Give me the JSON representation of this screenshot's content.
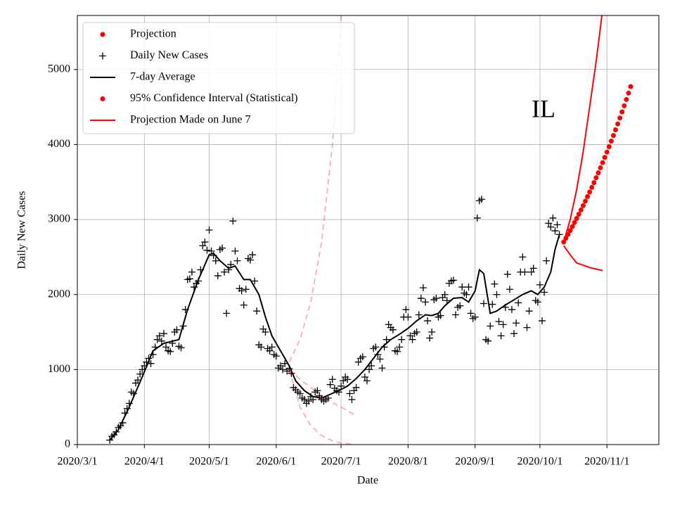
{
  "chart_data": {
    "type": "scatter",
    "annotation": "IL",
    "xlabel": "Date",
    "ylabel": "Daily New Cases",
    "xlim": [
      "2020/3/1",
      "2020/11/25"
    ],
    "ylim": [
      0,
      5720
    ],
    "xticks": [
      "2020/3/1",
      "2020/4/1",
      "2020/5/1",
      "2020/6/1",
      "2020/7/1",
      "2020/8/1",
      "2020/9/1",
      "2020/10/1",
      "2020/11/1"
    ],
    "yticks": [
      0,
      1000,
      2000,
      3000,
      4000,
      5000
    ],
    "grid": true,
    "legend": "upper left",
    "series": [
      {
        "name": "Projection",
        "color": "#ff0000",
        "style": "dot",
        "x": [
          "2020/10/12",
          "2020/10/13",
          "2020/10/14",
          "2020/10/15",
          "2020/10/16",
          "2020/10/17",
          "2020/10/18",
          "2020/10/19",
          "2020/10/20",
          "2020/10/21",
          "2020/10/22",
          "2020/10/23",
          "2020/10/24",
          "2020/10/25",
          "2020/10/26",
          "2020/10/27",
          "2020/10/28",
          "2020/10/29",
          "2020/10/30",
          "2020/10/31",
          "2020/11/1",
          "2020/11/2",
          "2020/11/3",
          "2020/11/4",
          "2020/11/5",
          "2020/11/6",
          "2020/11/7",
          "2020/11/8",
          "2020/11/9",
          "2020/11/10",
          "2020/11/11",
          "2020/11/12"
        ],
        "values": [
          2700,
          2750,
          2801,
          2853,
          2906,
          2960,
          3015,
          3071,
          3128,
          3186,
          3245,
          3305,
          3366,
          3428,
          3492,
          3557,
          3623,
          3690,
          3758,
          3828,
          3899,
          3971,
          4045,
          4120,
          4196,
          4274,
          4353,
          4434,
          4516,
          4600,
          4685,
          4772
        ]
      },
      {
        "name": "Daily New Cases",
        "color": "#000000",
        "style": "plus",
        "x": [
          "2020/3/16",
          "2020/3/17",
          "2020/3/18",
          "2020/3/19",
          "2020/3/20",
          "2020/3/21",
          "2020/3/22",
          "2020/3/23",
          "2020/3/24",
          "2020/3/25",
          "2020/3/26",
          "2020/3/27",
          "2020/3/28",
          "2020/3/29",
          "2020/3/30",
          "2020/3/31",
          "2020/4/1",
          "2020/4/2",
          "2020/4/3",
          "2020/4/4",
          "2020/4/5",
          "2020/4/6",
          "2020/4/7",
          "2020/4/8",
          "2020/4/9",
          "2020/4/10",
          "2020/4/11",
          "2020/4/12",
          "2020/4/13",
          "2020/4/14",
          "2020/4/15",
          "2020/4/16",
          "2020/4/17",
          "2020/4/18",
          "2020/4/19",
          "2020/4/20",
          "2020/4/21",
          "2020/4/22",
          "2020/4/23",
          "2020/4/24",
          "2020/4/25",
          "2020/4/26",
          "2020/4/27",
          "2020/4/28",
          "2020/4/29",
          "2020/4/30",
          "2020/5/1",
          "2020/5/2",
          "2020/5/3",
          "2020/5/4",
          "2020/5/5",
          "2020/5/6",
          "2020/5/7",
          "2020/5/8",
          "2020/5/9",
          "2020/5/10",
          "2020/5/11",
          "2020/5/12",
          "2020/5/13",
          "2020/5/14",
          "2020/5/15",
          "2020/5/16",
          "2020/5/17",
          "2020/5/18",
          "2020/5/19",
          "2020/5/20",
          "2020/5/21",
          "2020/5/22",
          "2020/5/23",
          "2020/5/24",
          "2020/5/25",
          "2020/5/26",
          "2020/5/27",
          "2020/5/28",
          "2020/5/29",
          "2020/5/30",
          "2020/5/31",
          "2020/6/1",
          "2020/6/2",
          "2020/6/3",
          "2020/6/4",
          "2020/6/5",
          "2020/6/6",
          "2020/6/7",
          "2020/6/8",
          "2020/6/9",
          "2020/6/10",
          "2020/6/11",
          "2020/6/12",
          "2020/6/13",
          "2020/6/14",
          "2020/6/15",
          "2020/6/16",
          "2020/6/17",
          "2020/6/18",
          "2020/6/19",
          "2020/6/20",
          "2020/6/21",
          "2020/6/22",
          "2020/6/23",
          "2020/6/24",
          "2020/6/25",
          "2020/6/26",
          "2020/6/27",
          "2020/6/28",
          "2020/6/29",
          "2020/6/30",
          "2020/7/1",
          "2020/7/2",
          "2020/7/3",
          "2020/7/4",
          "2020/7/5",
          "2020/7/6",
          "2020/7/7",
          "2020/7/8",
          "2020/7/9",
          "2020/7/10",
          "2020/7/11",
          "2020/7/12",
          "2020/7/13",
          "2020/7/14",
          "2020/7/15",
          "2020/7/16",
          "2020/7/17",
          "2020/7/18",
          "2020/7/19",
          "2020/7/20",
          "2020/7/21",
          "2020/7/22",
          "2020/7/23",
          "2020/7/24",
          "2020/7/25",
          "2020/7/26",
          "2020/7/27",
          "2020/7/28",
          "2020/7/29",
          "2020/7/30",
          "2020/7/31",
          "2020/8/1",
          "2020/8/2",
          "2020/8/3",
          "2020/8/4",
          "2020/8/5",
          "2020/8/6",
          "2020/8/7",
          "2020/8/8",
          "2020/8/9",
          "2020/8/10",
          "2020/8/11",
          "2020/8/12",
          "2020/8/13",
          "2020/8/14",
          "2020/8/15",
          "2020/8/16",
          "2020/8/17",
          "2020/8/18",
          "2020/8/19",
          "2020/8/20",
          "2020/8/21",
          "2020/8/22",
          "2020/8/23",
          "2020/8/24",
          "2020/8/25",
          "2020/8/26",
          "2020/8/27",
          "2020/8/28",
          "2020/8/29",
          "2020/8/30",
          "2020/8/31",
          "2020/9/1",
          "2020/9/2",
          "2020/9/3",
          "2020/9/4",
          "2020/9/5",
          "2020/9/6",
          "2020/9/7",
          "2020/9/8",
          "2020/9/9",
          "2020/9/10",
          "2020/9/11",
          "2020/9/12",
          "2020/9/13",
          "2020/9/14",
          "2020/9/15",
          "2020/9/16",
          "2020/9/17",
          "2020/9/18",
          "2020/9/19",
          "2020/9/20",
          "2020/9/21",
          "2020/9/22",
          "2020/9/23",
          "2020/9/24",
          "2020/9/25",
          "2020/9/26",
          "2020/9/27",
          "2020/9/28",
          "2020/9/29",
          "2020/9/30",
          "2020/10/1",
          "2020/10/2",
          "2020/10/3",
          "2020/10/4",
          "2020/10/5",
          "2020/10/6",
          "2020/10/7",
          "2020/10/8",
          "2020/10/9",
          "2020/10/10"
        ],
        "values": [
          60,
          110,
          130,
          170,
          230,
          250,
          290,
          420,
          480,
          550,
          700,
          680,
          820,
          860,
          940,
          1000,
          1050,
          1100,
          1150,
          1080,
          1200,
          1300,
          1400,
          1450,
          1380,
          1480,
          1300,
          1250,
          1240,
          1350,
          1500,
          1530,
          1310,
          1290,
          1580,
          1800,
          2200,
          2210,
          2300,
          2100,
          2150,
          2180,
          2330,
          2650,
          2700,
          2590,
          2860,
          2580,
          2520,
          2450,
          2250,
          2600,
          2620,
          2300,
          1750,
          2330,
          2400,
          2980,
          2580,
          2450,
          2080,
          2050,
          1860,
          2070,
          2480,
          2460,
          2530,
          2180,
          1780,
          1330,
          1300,
          1540,
          1500,
          1280,
          1250,
          1300,
          1200,
          1180,
          1020,
          1050,
          1000,
          1080,
          980,
          1010,
          950,
          760,
          730,
          700,
          680,
          620,
          600,
          550,
          580,
          640,
          600,
          700,
          720,
          650,
          600,
          580,
          600,
          620,
          800,
          870,
          750,
          720,
          700,
          780,
          850,
          900,
          870,
          680,
          600,
          720,
          760,
          1100,
          1150,
          1170,
          900,
          850,
          1000,
          1050,
          1280,
          1300,
          1200,
          1140,
          1020,
          1300,
          1400,
          1600,
          1560,
          1530,
          1250,
          1240,
          1300,
          1400,
          1700,
          1800,
          1700,
          1450,
          1400,
          1480,
          1500,
          1730,
          1950,
          2090,
          1900,
          1650,
          1420,
          1500,
          1930,
          1950,
          1700,
          1720,
          1960,
          2000,
          1920,
          2150,
          2180,
          2190,
          1730,
          1830,
          1850,
          2100,
          2020,
          2000,
          2100,
          1750,
          1680,
          1700,
          3020,
          3250,
          3270,
          1880,
          1400,
          1380,
          1580,
          1870,
          2140,
          2000,
          1640,
          1450,
          1600,
          1830,
          2270,
          2070,
          1800,
          1480,
          1620,
          1890,
          2300,
          2500,
          2300,
          1560,
          1780,
          2300,
          2350,
          1920,
          1900,
          2130,
          1650,
          2030,
          2450,
          2950,
          2900,
          3020,
          2850,
          2930,
          2800
        ]
      },
      {
        "name": "7-day Average",
        "color": "#000000",
        "style": "line",
        "x": [
          "2020/3/16",
          "2020/3/20",
          "2020/3/25",
          "2020/3/31",
          "2020/4/5",
          "2020/4/10",
          "2020/4/17",
          "2020/4/21",
          "2020/4/26",
          "2020/5/1",
          "2020/5/3",
          "2020/5/6",
          "2020/5/10",
          "2020/5/13",
          "2020/5/17",
          "2020/5/20",
          "2020/5/24",
          "2020/5/27",
          "2020/5/30",
          "2020/6/3",
          "2020/6/7",
          "2020/6/10",
          "2020/6/14",
          "2020/6/18",
          "2020/6/22",
          "2020/6/26",
          "2020/6/30",
          "2020/7/4",
          "2020/7/8",
          "2020/7/12",
          "2020/7/16",
          "2020/7/20",
          "2020/7/24",
          "2020/7/28",
          "2020/8/1",
          "2020/8/5",
          "2020/8/9",
          "2020/8/12",
          "2020/8/15",
          "2020/8/18",
          "2020/8/22",
          "2020/8/26",
          "2020/8/29",
          "2020/9/1",
          "2020/9/3",
          "2020/9/5",
          "2020/9/8",
          "2020/9/11",
          "2020/9/15",
          "2020/9/19",
          "2020/9/23",
          "2020/9/27",
          "2020/9/30",
          "2020/10/3",
          "2020/10/6",
          "2020/10/8",
          "2020/10/10"
        ],
        "values": [
          60,
          200,
          500,
          900,
          1250,
          1350,
          1400,
          1800,
          2200,
          2530,
          2550,
          2450,
          2350,
          2380,
          2200,
          2200,
          2000,
          1700,
          1450,
          1250,
          1050,
          850,
          720,
          640,
          620,
          670,
          720,
          780,
          880,
          1000,
          1150,
          1300,
          1400,
          1470,
          1550,
          1650,
          1730,
          1720,
          1750,
          1850,
          1950,
          1960,
          1900,
          2050,
          2330,
          2280,
          1750,
          1780,
          1860,
          1930,
          2000,
          2050,
          2000,
          2100,
          2300,
          2600,
          2800
        ]
      },
      {
        "name": "95% Confidence Interval (Statistical)",
        "color": "#ff0000",
        "style": "dot",
        "x": [
          "2020/10/12",
          "2020/10/15",
          "2020/10/18",
          "2020/10/21",
          "2020/10/24",
          "2020/10/27",
          "2020/10/30"
        ],
        "lower": [
          2650,
          2530,
          2420,
          2390,
          2360,
          2340,
          2320
        ],
        "upper": [
          2700,
          3000,
          3400,
          3900,
          4500,
          5100,
          5800
        ]
      },
      {
        "name": "Projection Made on June 7",
        "color": "#ff0000",
        "style": "line",
        "data_alpha": 0.3,
        "data_dash": true,
        "x": [
          "2020/6/7",
          "2020/6/12",
          "2020/6/17",
          "2020/6/22",
          "2020/6/27",
          "2020/7/1",
          "2020/7/7"
        ],
        "values": [
          1000,
          870,
          760,
          650,
          560,
          500,
          400
        ],
        "lower": [
          1000,
          500,
          250,
          120,
          50,
          20,
          5
        ],
        "upper": [
          1100,
          1400,
          1900,
          2700,
          4000,
          5720,
          null
        ]
      }
    ]
  }
}
